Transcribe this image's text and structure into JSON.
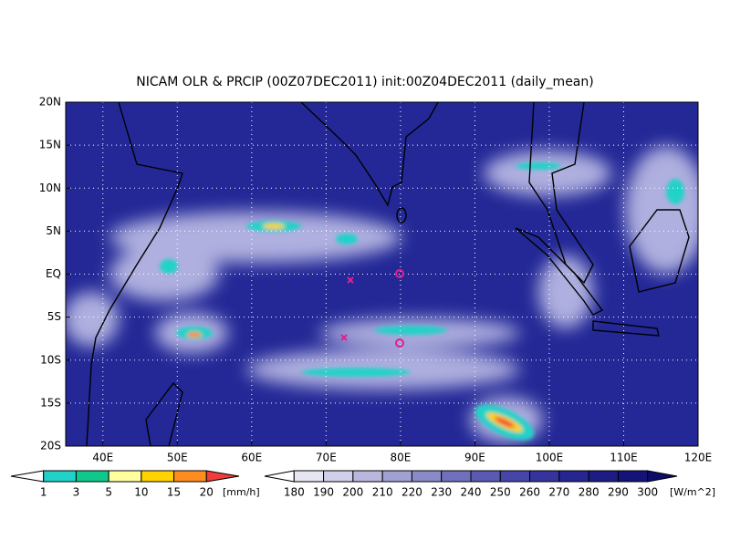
{
  "title": "NICAM OLR & PRCIP (00Z07DEC2011) init:00Z04DEC2011 (daily_mean)",
  "map": {
    "lonlim": [
      35,
      120
    ],
    "latlim": [
      -20,
      20
    ],
    "lon_ticks": [
      {
        "value": 40,
        "label": "40E"
      },
      {
        "value": 50,
        "label": "50E"
      },
      {
        "value": 60,
        "label": "60E"
      },
      {
        "value": 70,
        "label": "70E"
      },
      {
        "value": 80,
        "label": "80E"
      },
      {
        "value": 90,
        "label": "90E"
      },
      {
        "value": 100,
        "label": "100E"
      },
      {
        "value": 110,
        "label": "110E"
      },
      {
        "value": 120,
        "label": "120E"
      }
    ],
    "lat_ticks": [
      {
        "value": 20,
        "label": "20N"
      },
      {
        "value": 15,
        "label": "15N"
      },
      {
        "value": 10,
        "label": "10N"
      },
      {
        "value": 5,
        "label": "5N"
      },
      {
        "value": 0,
        "label": "EQ"
      },
      {
        "value": -5,
        "label": "5S"
      },
      {
        "value": -10,
        "label": "10S"
      },
      {
        "value": -15,
        "label": "15S"
      },
      {
        "value": -20,
        "label": "20S"
      }
    ]
  },
  "precip_colorbar": {
    "levels": [
      1,
      3,
      5,
      10,
      15,
      20
    ],
    "unit": "[mm/h]",
    "colors": [
      "#ffffff",
      "#20d2c8",
      "#10c88c",
      "#ffffa0",
      "#ffd200",
      "#ff8c1e",
      "#f03c3c"
    ]
  },
  "olr_colorbar": {
    "levels": [
      180,
      190,
      200,
      210,
      220,
      230,
      240,
      250,
      260,
      270,
      280,
      290,
      300
    ],
    "unit": "[W/m^2]",
    "colors": [
      "#ffffff",
      "#e6e6f2",
      "#d0d0ea",
      "#b8b8de",
      "#a0a0d2",
      "#8a8ac8",
      "#7070bc",
      "#5a5ab2",
      "#4646a8",
      "#34349c",
      "#262690",
      "#1c1c84",
      "#141478",
      "#0c0c6c"
    ]
  }
}
